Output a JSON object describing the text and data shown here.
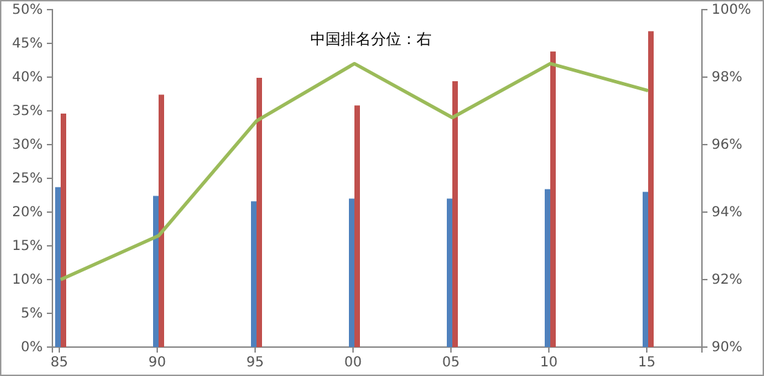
{
  "chart_data": {
    "type": "bar",
    "categories": [
      "85",
      "90",
      "95",
      "00",
      "05",
      "10",
      "15"
    ],
    "series": [
      {
        "color": "#4f81bd",
        "values": [
          23.7,
          22.4,
          21.6,
          22.0,
          22.0,
          23.4,
          23.0
        ]
      },
      {
        "color": "#c0504d",
        "values": [
          34.6,
          37.4,
          39.9,
          35.8,
          39.4,
          43.8,
          46.8
        ]
      },
      {
        "type": "line",
        "axis": "y2",
        "color": "#9bbb59",
        "values": [
          92.0,
          93.3,
          96.7,
          98.4,
          96.8,
          98.4,
          97.6
        ]
      }
    ],
    "ylim": [
      0,
      50
    ],
    "yticks": [
      {
        "value": 0,
        "label": "0%"
      },
      {
        "value": 5,
        "label": "5%"
      },
      {
        "value": 10,
        "label": "10%"
      },
      {
        "value": 15,
        "label": "15%"
      },
      {
        "value": 20,
        "label": "20%"
      },
      {
        "value": 25,
        "label": "25%"
      },
      {
        "value": 30,
        "label": "30%"
      },
      {
        "value": 35,
        "label": "35%"
      },
      {
        "value": 40,
        "label": "40%"
      },
      {
        "value": 45,
        "label": "45%"
      },
      {
        "value": 50,
        "label": "50%"
      }
    ],
    "y2lim": [
      90,
      100
    ],
    "y2ticks": [
      {
        "value": 90,
        "label": "90%"
      },
      {
        "value": 92,
        "label": "92%"
      },
      {
        "value": 94,
        "label": "94%"
      },
      {
        "value": 96,
        "label": "96%"
      },
      {
        "value": 98,
        "label": "98%"
      },
      {
        "value": 100,
        "label": "100%"
      }
    ],
    "annotations": [
      "中国排名分位：右"
    ],
    "grid": false
  }
}
